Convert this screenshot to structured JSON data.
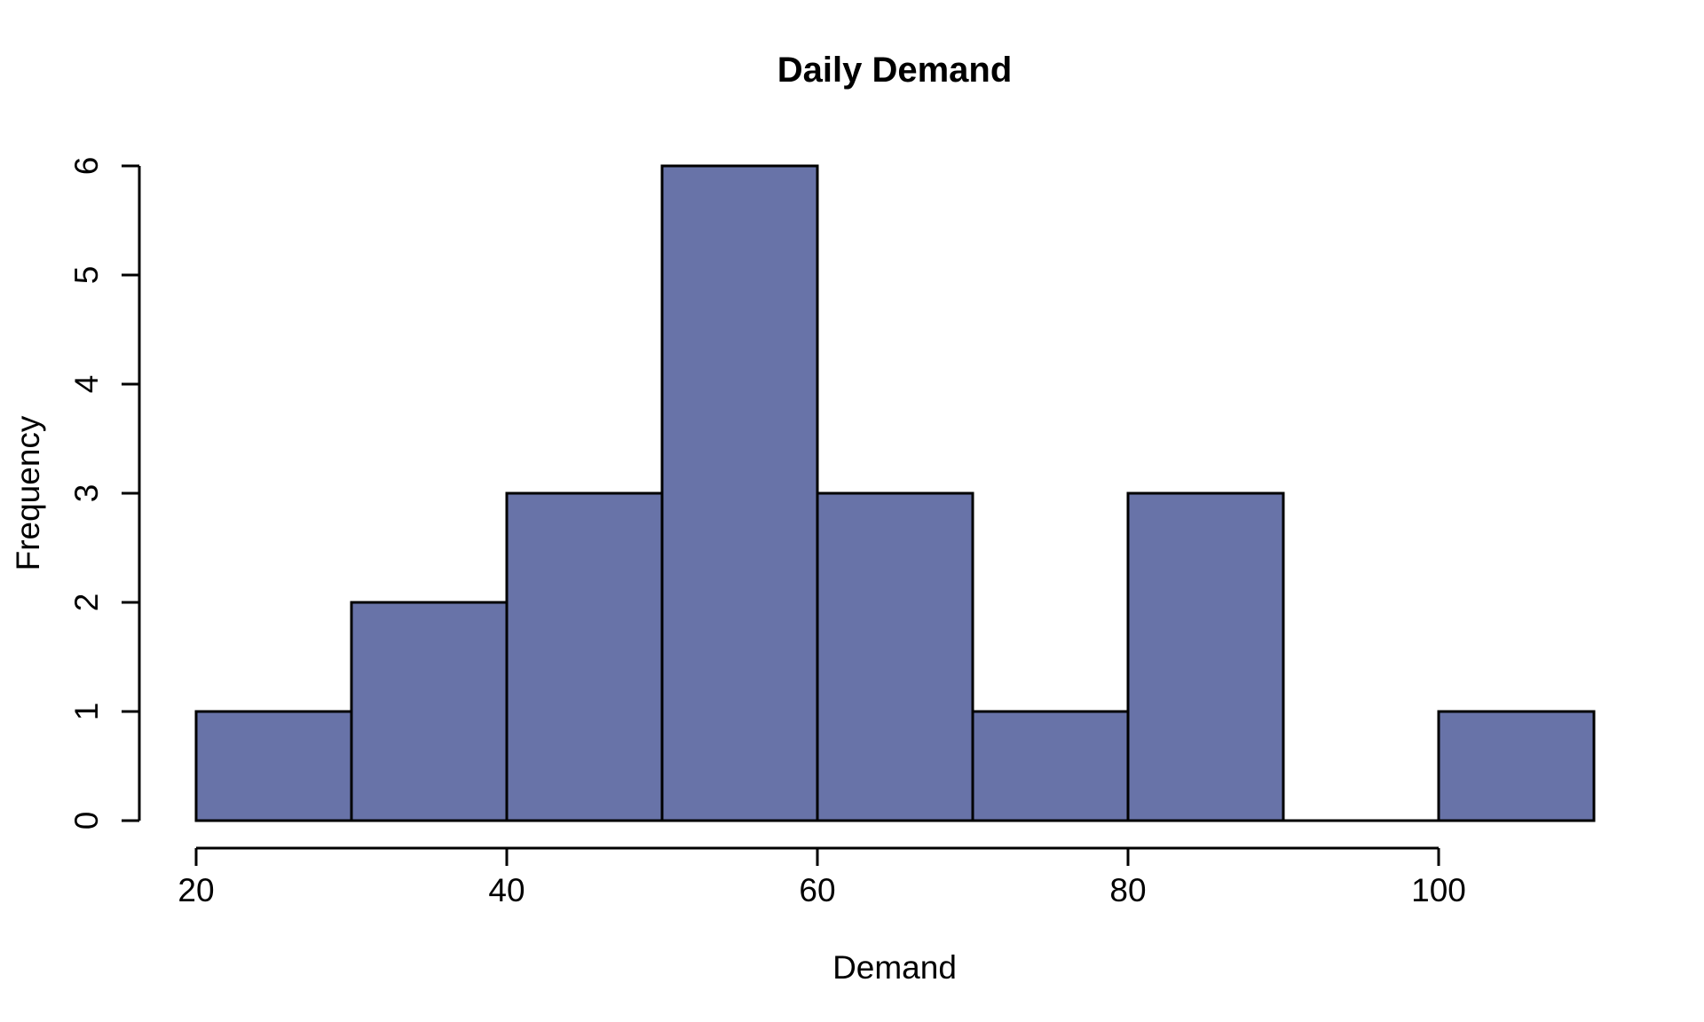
{
  "chart_data": {
    "type": "bar",
    "subtype": "histogram",
    "title": "Daily Demand",
    "xlabel": "Demand",
    "ylabel": "Frequency",
    "bin_edges": [
      20,
      30,
      40,
      50,
      60,
      70,
      80,
      90,
      100,
      110
    ],
    "counts": [
      1,
      2,
      3,
      6,
      3,
      1,
      3,
      0,
      1
    ],
    "x_ticks": [
      20,
      40,
      60,
      80,
      100
    ],
    "y_ticks": [
      0,
      1,
      2,
      3,
      4,
      5,
      6
    ],
    "xlim": [
      20,
      110
    ],
    "ylim": [
      0,
      6
    ],
    "grid": false,
    "legend": "none",
    "colors": {
      "bar_fill": "#6873A8",
      "bar_border": "#000000",
      "axis": "#000000",
      "text": "#000000",
      "background": "#FFFFFF"
    }
  }
}
